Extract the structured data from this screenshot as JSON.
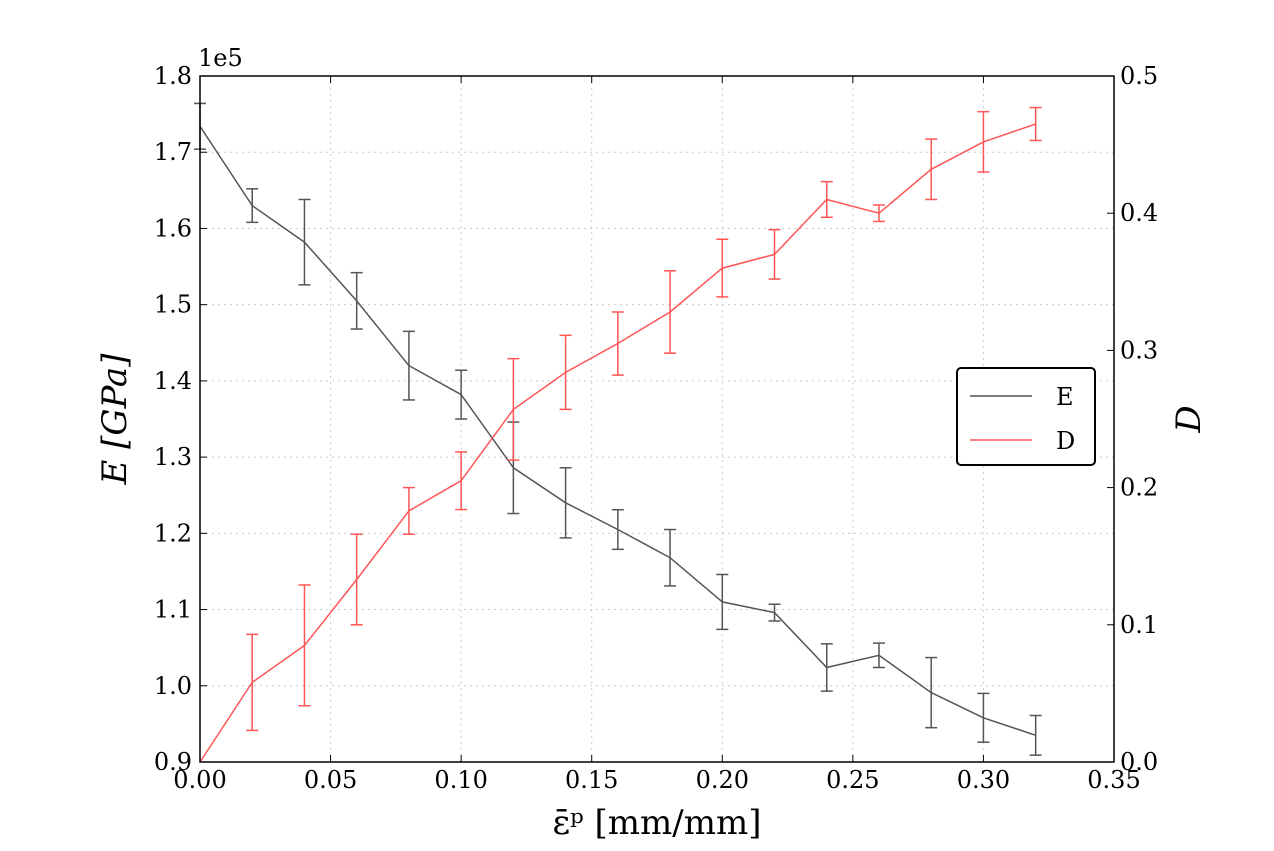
{
  "chart_data": {
    "type": "line",
    "x_ticks": [
      "0.00",
      "0.05",
      "0.10",
      "0.15",
      "0.20",
      "0.25",
      "0.30",
      "0.35"
    ],
    "y_left_ticks": [
      "0.9",
      "1.0",
      "1.1",
      "1.2",
      "1.3",
      "1.4",
      "1.5",
      "1.6",
      "1.7",
      "1.8"
    ],
    "y_left_multiplier": "1e5",
    "y_right_ticks": [
      "0.0",
      "0.1",
      "0.2",
      "0.3",
      "0.4",
      "0.5"
    ],
    "xlabel": "ε̄ᵖ [mm/mm]",
    "ylabel_left": "E [GPa]",
    "ylabel_right": "D",
    "xlim": [
      0,
      0.35
    ],
    "ylim_left": [
      90000,
      180000
    ],
    "ylim_right": [
      0,
      0.5
    ],
    "grid": true,
    "legend_placement": "center-right",
    "x": [
      0.0,
      0.02,
      0.04,
      0.06,
      0.08,
      0.1,
      0.12,
      0.14,
      0.16,
      0.18,
      0.2,
      0.22,
      0.24,
      0.26,
      0.28,
      0.3,
      0.32
    ],
    "series": [
      {
        "name": "E",
        "axis": "left",
        "color": "#555555",
        "values": [
          173400,
          163000,
          158200,
          150500,
          142000,
          138200,
          128600,
          124000,
          120500,
          116800,
          111000,
          109600,
          102400,
          104000,
          99100,
          95800,
          93500
        ],
        "error": [
          3000,
          2200,
          5600,
          3700,
          4500,
          3200,
          6000,
          4600,
          2600,
          3700,
          3600,
          1100,
          3100,
          1600,
          4600,
          3200,
          2600
        ]
      },
      {
        "name": "D",
        "axis": "right",
        "color": "#ff5555",
        "values": [
          0.0,
          0.058,
          0.085,
          0.133,
          0.183,
          0.205,
          0.257,
          0.284,
          0.305,
          0.328,
          0.36,
          0.37,
          0.41,
          0.4,
          0.432,
          0.452,
          0.465
        ],
        "error": [
          0.0,
          0.035,
          0.044,
          0.033,
          0.017,
          0.021,
          0.037,
          0.027,
          0.023,
          0.03,
          0.021,
          0.018,
          0.013,
          0.006,
          0.022,
          0.022,
          0.012
        ]
      }
    ]
  }
}
